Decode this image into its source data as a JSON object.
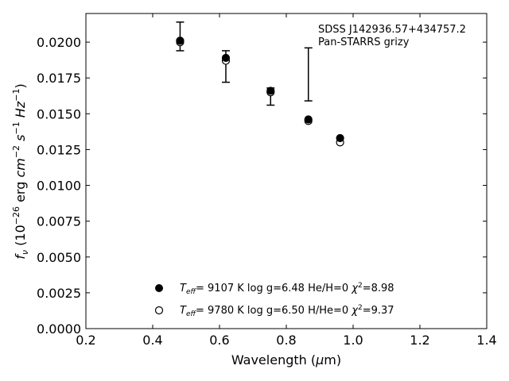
{
  "chart_data": {
    "type": "scatter",
    "annotation": {
      "line1": "SDSS J142936.57+434757.2",
      "line2": "Pan-STARRS grizy"
    },
    "xlabel": "Wavelength (μm)",
    "ylabel": "fν (10⁻²⁶ erg cm⁻² s⁻¹ Hz⁻¹)",
    "xlim": [
      0.2,
      1.4
    ],
    "ylim": [
      0.0,
      0.022
    ],
    "x_ticks": [
      "0.2",
      "0.4",
      "0.6",
      "0.8",
      "1.0",
      "1.2",
      "1.4"
    ],
    "x_tick_values": [
      0.2,
      0.4,
      0.6,
      0.8,
      1.0,
      1.2,
      1.4
    ],
    "y_ticks": [
      "0.0000",
      "0.0025",
      "0.0050",
      "0.0075",
      "0.0100",
      "0.0125",
      "0.0150",
      "0.0175",
      "0.0200"
    ],
    "y_tick_values": [
      0.0,
      0.0025,
      0.005,
      0.0075,
      0.01,
      0.0125,
      0.015,
      0.0175,
      0.02
    ],
    "grid": false,
    "legend_position": "bottom-center",
    "observed": {
      "x": [
        0.482,
        0.619,
        0.753,
        0.866,
        0.961
      ],
      "y": [
        0.0204,
        0.0183,
        0.0162,
        0.0178,
        null
      ],
      "err_low": [
        0.0194,
        0.0172,
        0.0156,
        0.0159,
        null
      ],
      "err_high": [
        0.0214,
        0.0194,
        0.0168,
        0.0196,
        null
      ]
    },
    "series": [
      {
        "legend": "T_eff=  9107 K  log g=6.48  He/H=0  χ²=8.98",
        "marker": "filled",
        "color": "#000000",
        "x": [
          0.482,
          0.619,
          0.753,
          0.866,
          0.961
        ],
        "y": [
          0.0201,
          0.0189,
          0.0166,
          0.0146,
          0.0133
        ]
      },
      {
        "legend": "T_eff=  9780 K  log g=6.50  H/He=0  χ²=9.37",
        "marker": "open",
        "color": "#000000",
        "x": [
          0.482,
          0.619,
          0.753,
          0.866,
          0.961
        ],
        "y": [
          0.02,
          0.0187,
          0.0165,
          0.0145,
          0.013
        ]
      }
    ]
  }
}
